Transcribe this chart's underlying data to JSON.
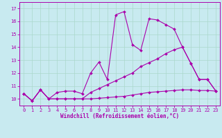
{
  "xlabel": "Windchill (Refroidissement éolien,°C)",
  "xlim": [
    -0.5,
    23.5
  ],
  "ylim": [
    9.5,
    17.5
  ],
  "xticks": [
    0,
    1,
    2,
    3,
    4,
    5,
    6,
    7,
    8,
    9,
    10,
    11,
    12,
    13,
    14,
    15,
    16,
    17,
    18,
    19,
    20,
    21,
    22,
    23
  ],
  "yticks": [
    10,
    11,
    12,
    13,
    14,
    15,
    16,
    17
  ],
  "bg_color": "#c8eaf0",
  "grid_color": "#aad8cc",
  "line_color": "#aa00aa",
  "line1_x": [
    0,
    1,
    2,
    3,
    4,
    5,
    6,
    7,
    8,
    9,
    10,
    11,
    12,
    13,
    14,
    15,
    16,
    17,
    18,
    19,
    20,
    21,
    22,
    23
  ],
  "line1_y": [
    10.4,
    9.85,
    10.7,
    10.0,
    10.5,
    10.6,
    10.6,
    10.4,
    12.0,
    12.85,
    11.5,
    16.5,
    16.75,
    14.2,
    13.75,
    16.2,
    16.1,
    15.75,
    15.4,
    14.0,
    12.75,
    11.5,
    11.5,
    10.6
  ],
  "line2_x": [
    0,
    1,
    2,
    3,
    4,
    5,
    6,
    7,
    8,
    9,
    10,
    11,
    12,
    13,
    14,
    15,
    16,
    17,
    18,
    19,
    20,
    21,
    22,
    23
  ],
  "line2_y": [
    10.4,
    9.85,
    10.7,
    10.0,
    10.0,
    10.0,
    10.0,
    10.0,
    10.5,
    10.8,
    11.1,
    11.4,
    11.7,
    12.0,
    12.5,
    12.8,
    13.1,
    13.5,
    13.8,
    14.0,
    12.75,
    11.5,
    11.5,
    10.6
  ],
  "line3_x": [
    0,
    1,
    2,
    3,
    4,
    5,
    6,
    7,
    8,
    9,
    10,
    11,
    12,
    13,
    14,
    15,
    16,
    17,
    18,
    19,
    20,
    21,
    22,
    23
  ],
  "line3_y": [
    10.4,
    9.85,
    10.7,
    10.0,
    10.0,
    10.0,
    10.0,
    10.0,
    10.0,
    10.05,
    10.1,
    10.15,
    10.2,
    10.3,
    10.4,
    10.5,
    10.55,
    10.6,
    10.65,
    10.7,
    10.7,
    10.65,
    10.65,
    10.6
  ]
}
